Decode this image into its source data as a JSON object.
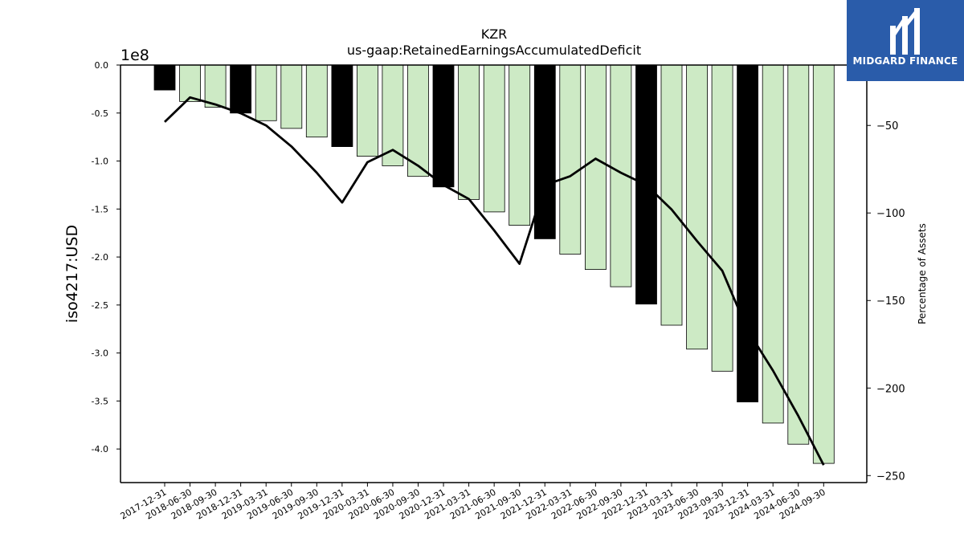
{
  "brand": {
    "name": "MIDGARD FINANCE",
    "logo_icon": "midgard-m-logo-icon",
    "background": "#2a5caa"
  },
  "chart_data": {
    "type": "bar",
    "title": "KZR",
    "subtitle": "us-gaap:RetainedEarningsAccumulatedDeficit",
    "ylabel": "iso4217:USD",
    "y2label": "Percentage of Assets",
    "y_offset_label": "1e8",
    "y_scale": 100000000,
    "categories": [
      "2017-12-31",
      "2018-06-30",
      "2018-09-30",
      "2018-12-31",
      "2019-03-31",
      "2019-06-30",
      "2019-09-30",
      "2019-12-31",
      "2020-03-31",
      "2020-06-30",
      "2020-09-30",
      "2020-12-31",
      "2021-03-31",
      "2021-06-30",
      "2021-09-30",
      "2021-12-31",
      "2022-03-31",
      "2022-06-30",
      "2022-09-30",
      "2022-12-31",
      "2023-03-31",
      "2023-06-30",
      "2023-09-30",
      "2023-12-31",
      "2024-03-31",
      "2024-06-30",
      "2024-09-30"
    ],
    "series": [
      {
        "type": "bar",
        "axis": "left",
        "values": [
          -26000000,
          -38000000,
          -44000000,
          -50000000,
          -58000000,
          -66000000,
          -75000000,
          -85000000,
          -95000000,
          -105000000,
          -116000000,
          -127000000,
          -140000000,
          -153000000,
          -167000000,
          -181000000,
          -197000000,
          -213000000,
          -231000000,
          -249000000,
          -271000000,
          -296000000,
          -319000000,
          -351000000,
          -373000000,
          -395000000,
          -415000000
        ],
        "annual_color": "#000000",
        "quarter_color": "#cdeac5",
        "annual": [
          true,
          false,
          false,
          true,
          false,
          false,
          false,
          true,
          false,
          false,
          false,
          true,
          false,
          false,
          false,
          true,
          false,
          false,
          false,
          true,
          false,
          false,
          false,
          true,
          false,
          false,
          false
        ]
      },
      {
        "type": "line",
        "axis": "right",
        "color": "#000000",
        "values": [
          -48,
          -34,
          -38,
          -43,
          -50,
          -62,
          -77,
          -94,
          -71,
          -64,
          -73,
          -84,
          -92,
          -110,
          -129,
          -84,
          -79,
          -69,
          -77,
          -84,
          -98,
          -116,
          -133,
          -167,
          -190,
          -216,
          -244
        ]
      }
    ],
    "ylim": [
      -4.35,
      0
    ],
    "y_ticks": [
      0.0,
      -0.5,
      -1.0,
      -1.5,
      -2.0,
      -2.5,
      -3.0,
      -3.5,
      -4.0
    ],
    "y2lim": [
      -254,
      -15.5
    ],
    "y2_ticks": [
      -50,
      -100,
      -150,
      -200,
      -250
    ],
    "grid": false,
    "legend": "none"
  }
}
